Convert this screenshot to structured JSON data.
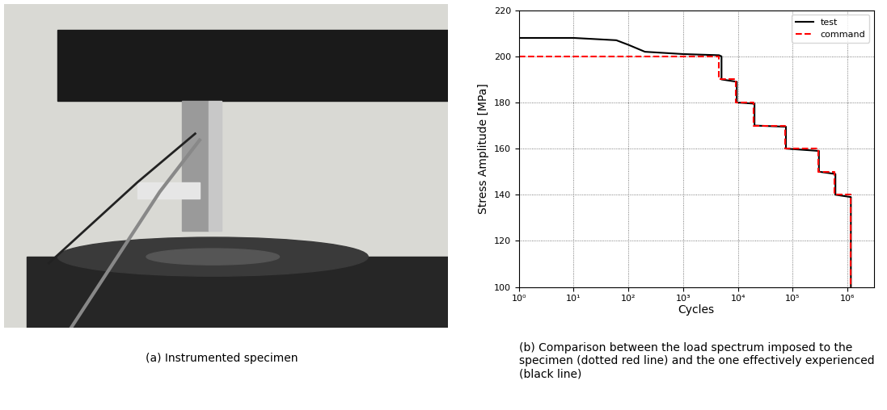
{
  "photo": {
    "caption": "(a) Instrumented specimen"
  },
  "chart_data": {
    "type": "line",
    "caption": "(b) Comparison between the load spectrum imposed to the specimen (dotted red line) and the one effectively experienced (black line)",
    "x_label": "Cycles",
    "y_label": "Stress Amplitude [MPa]",
    "log": "x",
    "grid": true,
    "legend": "upper right",
    "xlim": [
      1,
      3000000
    ],
    "ylim": [
      100,
      220
    ],
    "xticks": [
      {
        "value": 1,
        "label": "10⁰"
      },
      {
        "value": 10,
        "label": "10¹"
      },
      {
        "value": 100,
        "label": "10²"
      },
      {
        "value": 1000,
        "label": "10³"
      },
      {
        "value": 10000,
        "label": "10⁴"
      },
      {
        "value": 100000,
        "label": "10⁵"
      },
      {
        "value": 1000000,
        "label": "10⁶"
      }
    ],
    "yticks": [
      100,
      120,
      140,
      160,
      180,
      200,
      220
    ],
    "series": [
      {
        "name": "test",
        "color": "#000000",
        "line_style": "solid",
        "x": [
          1,
          10,
          60,
          100,
          200,
          1000,
          4500,
          5000,
          5000,
          9500,
          9500,
          20000,
          20000,
          75000,
          75000,
          300000,
          300000,
          600000,
          600000,
          1150000,
          1150000
        ],
        "values": [
          208,
          208,
          207,
          205,
          202,
          201,
          200.5,
          200,
          190,
          189,
          180,
          179.5,
          170,
          169.5,
          160,
          159,
          150,
          149,
          140,
          139,
          100
        ]
      },
      {
        "name": "command",
        "color": "#ff0000",
        "line_style": "dashed",
        "x": [
          1,
          4500,
          4500,
          9000,
          9000,
          19000,
          19000,
          72000,
          72000,
          290000,
          290000,
          580000,
          580000,
          1150000,
          1150000
        ],
        "values": [
          200,
          200,
          190,
          190,
          180,
          180,
          170,
          170,
          160,
          160,
          150,
          150,
          140,
          140,
          100
        ]
      }
    ]
  }
}
